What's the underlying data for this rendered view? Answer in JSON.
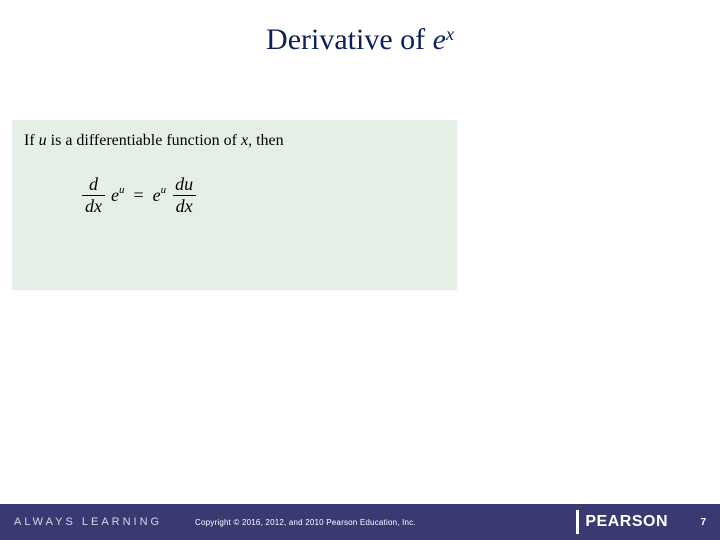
{
  "title": {
    "prefix": "Derivative of ",
    "base": "e",
    "exponent": "x",
    "color": "#0b1f5e",
    "fontsize": 30
  },
  "theorem": {
    "box_bg": "#e6efe6",
    "line1_prefix": "If ",
    "line1_u": "u",
    "line1_mid": " is a differentiable function of ",
    "line1_x": "x",
    "line1_suffix": ", then",
    "text_fontsize": 16,
    "formula": {
      "d": "d",
      "dx": "dx",
      "e": "e",
      "u": "u",
      "eq": "=",
      "du": "du",
      "fontsize": 18
    }
  },
  "footer": {
    "bg": "#3a3a73",
    "always": "ALWAYS LEARNING",
    "copyright": "Copyright © 2016, 2012, and 2010 Pearson Education, Inc.",
    "brand": "PEARSON",
    "page": "7",
    "text_color": "#ffffff"
  }
}
